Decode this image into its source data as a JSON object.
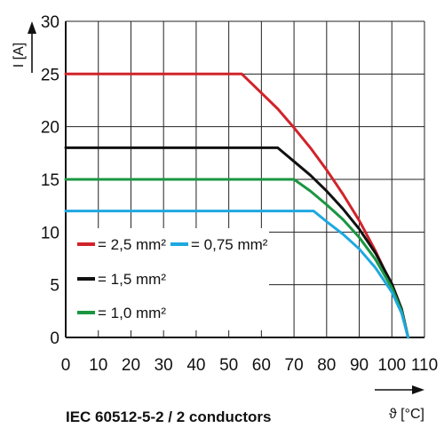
{
  "chart_data": {
    "type": "line",
    "xlabel": "ϑ [°C]",
    "ylabel": "I [A]",
    "xlim": [
      0,
      110
    ],
    "ylim": [
      0,
      30
    ],
    "x_ticks": [
      "0",
      "10",
      "20",
      "30",
      "40",
      "50",
      "60",
      "70",
      "80",
      "90",
      "100",
      "110"
    ],
    "y_ticks": [
      "0",
      "5",
      "10",
      "15",
      "20",
      "25",
      "30"
    ],
    "grid": true,
    "legend_position": "bottom-left",
    "caption": "IEC 60512-5-2 / 2 conductors",
    "series": [
      {
        "name": "= 2,5 mm²",
        "color": "#d2232a",
        "x": [
          0,
          54,
          60,
          65,
          70,
          75,
          80,
          85,
          90,
          95,
          100,
          103,
          105
        ],
        "y": [
          25,
          25,
          23.2,
          21.7,
          19.9,
          18.0,
          15.9,
          13.6,
          11.1,
          8.2,
          4.9,
          2.5,
          0
        ]
      },
      {
        "name": "= 1,5 mm²",
        "color": "#111111",
        "x": [
          0,
          65,
          70,
          75,
          80,
          85,
          90,
          95,
          100,
          103,
          105
        ],
        "y": [
          18,
          18,
          16.7,
          15.4,
          13.9,
          12.2,
          10.3,
          8.0,
          5.1,
          2.7,
          0
        ]
      },
      {
        "name": "= 1,0 mm²",
        "color": "#1a9641",
        "x": [
          0,
          70,
          75,
          80,
          85,
          90,
          95,
          100,
          103,
          105
        ],
        "y": [
          15,
          15,
          13.9,
          12.6,
          11.2,
          9.5,
          7.4,
          4.7,
          2.5,
          0
        ]
      },
      {
        "name": "= 0,75 mm²",
        "color": "#1ea8e0",
        "x": [
          0,
          76,
          80,
          85,
          90,
          95,
          100,
          103,
          105
        ],
        "y": [
          12,
          12,
          11.0,
          9.8,
          8.4,
          6.6,
          4.3,
          2.3,
          0
        ]
      }
    ]
  }
}
